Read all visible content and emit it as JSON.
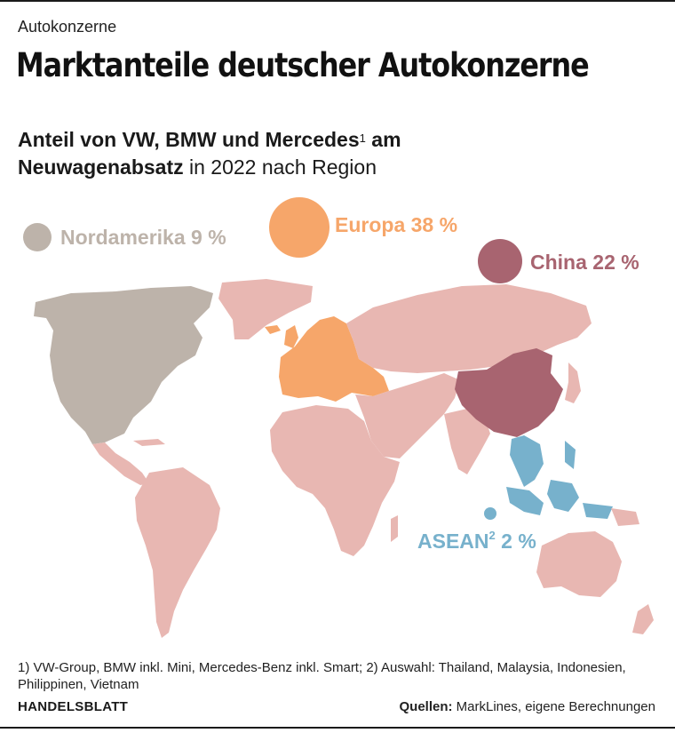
{
  "kicker": "Autokonzerne",
  "title": "Marktanteile deutscher Autokonzerne",
  "subtitle": {
    "bold_part": "Anteil von VW, BMW und Mercedes",
    "footnote_mark": "1",
    "bold_tail": " am",
    "bold_part2": "Neuwagenabsatz",
    "normal_part": " in 2022 nach Region"
  },
  "regions": [
    {
      "name": "Nordamerika",
      "value": 9,
      "label": "Nordamerika 9 %",
      "color": "#bdb3aa"
    },
    {
      "name": "Europa",
      "value": 38,
      "label": "Europa 38 %",
      "color": "#f6a66a"
    },
    {
      "name": "China",
      "value": 22,
      "label": "China 22 %",
      "color": "#a86470"
    },
    {
      "name": "ASEAN",
      "value": 2,
      "label_main": "ASEAN",
      "footnote_mark": "2",
      "label_value": " 2 %",
      "color": "#77b1cc"
    }
  ],
  "colors": {
    "world": "#e8b7b2",
    "north_america": "#bdb3aa",
    "europe": "#f6a66a",
    "china": "#a86470",
    "asean": "#77b1cc"
  },
  "footnotes": "1) VW-Group, BMW inkl. Mini, Mercedes-Benz inkl. Smart; 2) Auswahl: Thailand, Malaysia, Indonesien, Philippinen, Vietnam",
  "brand": "HANDELSBLATT",
  "source": {
    "label": "Quellen:",
    "text": " MarkLines, eigene Berechnungen"
  }
}
